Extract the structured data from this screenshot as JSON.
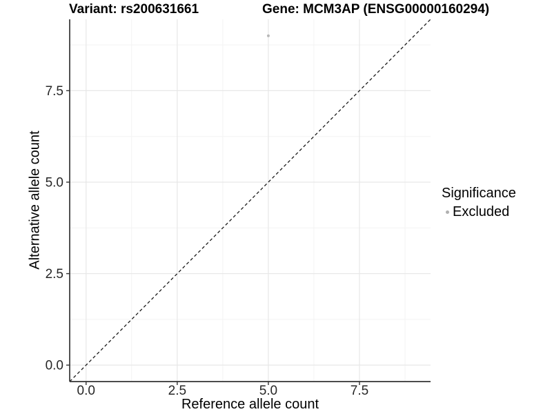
{
  "chart_data": {
    "type": "scatter",
    "title_left": "Variant: rs200631661",
    "title_right": "Gene: MCM3AP (ENSG00000160294)",
    "xlabel": "Reference allele count",
    "ylabel": "Alternative allele count",
    "xlim": [
      -0.45,
      9.45
    ],
    "ylim": [
      -0.45,
      9.45
    ],
    "x_ticks": [
      0.0,
      2.5,
      5.0,
      7.5
    ],
    "x_tick_labels": [
      "0.0",
      "2.5",
      "5.0",
      "7.5"
    ],
    "y_ticks": [
      0.0,
      2.5,
      5.0,
      7.5
    ],
    "y_tick_labels": [
      "0.0",
      "2.5",
      "5.0",
      "7.5"
    ],
    "minor_ticks": [
      1.25,
      3.75,
      6.25,
      8.75
    ],
    "grid": "major-and-minor",
    "reference_line": {
      "type": "identity",
      "style": "dashed",
      "color": "#1a1a1a"
    },
    "series": [
      {
        "name": "Excluded",
        "color": "#b8b8b8",
        "points": [
          {
            "x": 5,
            "y": 9
          }
        ]
      }
    ],
    "legend": {
      "title": "Significance",
      "position": "right",
      "items": [
        {
          "label": "Excluded",
          "color": "#b0b0b0"
        }
      ]
    },
    "colors": {
      "axis_line": "#333333",
      "grid_major": "#e7e7e7",
      "grid_minor": "#f3f3f3",
      "point": "#b8b8b8",
      "background": "#ffffff"
    }
  }
}
